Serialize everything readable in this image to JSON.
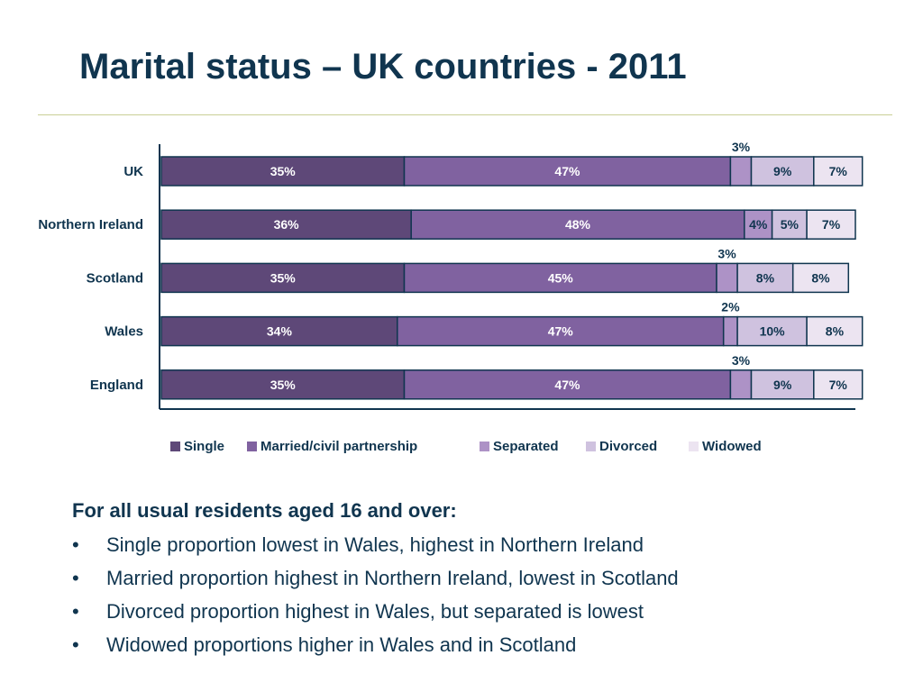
{
  "title": "Marital status – UK countries - 2011",
  "colors": {
    "single": "#5e4878",
    "married": "#8062a0",
    "separated": "#ad92c6",
    "divorced": "#cfc2df",
    "widowed": "#ece4f1",
    "text": "#10354f",
    "bar_border": "#10354f",
    "rule": "#c9cf96"
  },
  "chart_data": {
    "type": "bar",
    "orientation": "horizontal",
    "stacked": true,
    "categories": [
      "UK",
      "Northern Ireland",
      "Scotland",
      "Wales",
      "England"
    ],
    "series": [
      {
        "name": "Single",
        "values": [
          35,
          36,
          35,
          34,
          35
        ],
        "labels": [
          "35%",
          "36%",
          "35%",
          "34%",
          "35%"
        ],
        "color_key": "single"
      },
      {
        "name": "Married/civil partnership",
        "values": [
          47,
          48,
          45,
          47,
          47
        ],
        "labels": [
          "47%",
          "48%",
          "45%",
          "47%",
          "47%"
        ],
        "color_key": "married"
      },
      {
        "name": "Separated",
        "values": [
          3,
          4,
          3,
          2,
          3
        ],
        "labels": [
          "3%",
          "4%",
          "3%",
          "2%",
          "3%"
        ],
        "color_key": "separated"
      },
      {
        "name": "Divorced",
        "values": [
          9,
          5,
          8,
          10,
          9
        ],
        "labels": [
          "9%",
          "5%",
          "8%",
          "10%",
          "9%"
        ],
        "color_key": "divorced"
      },
      {
        "name": "Widowed",
        "values": [
          7,
          7,
          8,
          8,
          7
        ],
        "labels": [
          "7%",
          "7%",
          "8%",
          "8%",
          "7%"
        ],
        "color_key": "widowed"
      }
    ],
    "xlim": [
      0,
      100
    ],
    "grid": false,
    "legend_position": "bottom"
  },
  "notes": {
    "heading": "For all usual residents aged 16 and over:",
    "bullet_symbol": "•",
    "bullets": [
      "Single proportion lowest in Wales, highest in Northern Ireland",
      "Married proportion highest in Northern Ireland, lowest in Scotland",
      "Divorced proportion highest in Wales, but separated is lowest",
      "Widowed proportions higher in Wales and in Scotland"
    ]
  }
}
